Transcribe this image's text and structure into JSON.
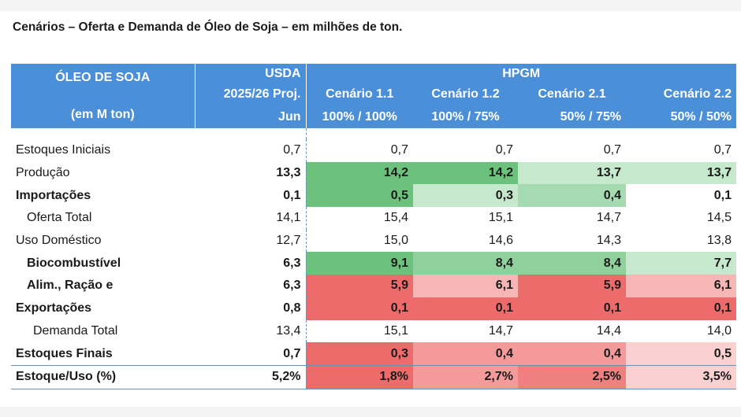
{
  "title": "Cenários – Oferta e Demanda de Óleo de Soja – em milhões de ton.",
  "header": {
    "label_line1": "ÓLEO DE SOJA",
    "label_line2": "(em M ton)",
    "usda_line1": "USDA",
    "usda_line2": "2025/26 Proj.",
    "usda_line3": "Jun",
    "hpgm": "HPGM",
    "scenarios": [
      {
        "name": "Cenário 1.1",
        "mix": "100% / 100%"
      },
      {
        "name": "Cenário 1.2",
        "mix": "100% / 75%"
      },
      {
        "name": "Cenário 2.1",
        "mix": "50% / 75%"
      },
      {
        "name": "Cenário 2.2",
        "mix": "50% / 50%"
      }
    ],
    "header_color": "#4a8fd8"
  },
  "rows": [
    {
      "label": "Estoques Iniciais",
      "style": "light",
      "indent": 0,
      "usda": "0,7",
      "values": [
        "0,7",
        "0,7",
        "0,7",
        "0,7"
      ],
      "fills": [
        "",
        "",
        "",
        ""
      ]
    },
    {
      "label": "Produção",
      "style": "light-bold",
      "indent": 0,
      "usda": "13,3",
      "values": [
        "14,2",
        "14,2",
        "13,7",
        "13,7"
      ],
      "fills": [
        "#6cc17d",
        "#6cc17d",
        "#c6e8cc",
        "#c6e8cc"
      ]
    },
    {
      "label": "Importações",
      "style": "bold",
      "indent": 0,
      "usda": "0,1",
      "values": [
        "0,5",
        "0,3",
        "0,4",
        "0,1"
      ],
      "fills": [
        "#6cc17d",
        "#c6e8cc",
        "#a6dab0",
        ""
      ]
    },
    {
      "label": "Oferta Total",
      "style": "light",
      "indent": 1,
      "usda": "14,1",
      "values": [
        "15,4",
        "15,1",
        "14,7",
        "14,5"
      ],
      "fills": [
        "",
        "",
        "",
        ""
      ]
    },
    {
      "label": "Uso Doméstico",
      "style": "light",
      "indent": 0,
      "usda": "12,7",
      "values": [
        "15,0",
        "14,6",
        "14,3",
        "13,8"
      ],
      "fills": [
        "",
        "",
        "",
        ""
      ]
    },
    {
      "label": "Biocombustível",
      "style": "bold",
      "indent": 1,
      "usda": "6,3",
      "values": [
        "9,1",
        "8,4",
        "8,4",
        "7,7"
      ],
      "fills": [
        "#6cc17d",
        "#8fd09c",
        "#8fd09c",
        "#c6e8cc"
      ]
    },
    {
      "label": "Alim., Ração e",
      "style": "bold",
      "indent": 1,
      "usda": "6,3",
      "values": [
        "5,9",
        "6,1",
        "5,9",
        "6,1"
      ],
      "fills": [
        "#ee6b6b",
        "#f7b6b6",
        "#ee6b6b",
        "#f7b6b6"
      ]
    },
    {
      "label": "Exportações",
      "style": "bold",
      "indent": 0,
      "usda": "0,8",
      "values": [
        "0,1",
        "0,1",
        "0,1",
        "0,1"
      ],
      "fills": [
        "#ee6b6b",
        "#ee6b6b",
        "#ee6b6b",
        "#ee6b6b"
      ]
    },
    {
      "label": "Demanda Total",
      "style": "light",
      "indent": 2,
      "usda": "13,4",
      "values": [
        "15,1",
        "14,7",
        "14,4",
        "14,0"
      ],
      "fills": [
        "",
        "",
        "",
        ""
      ]
    },
    {
      "label": "Estoques Finais",
      "style": "bold",
      "indent": 0,
      "usda": "0,7",
      "values": [
        "0,3",
        "0,4",
        "0,4",
        "0,5"
      ],
      "fills": [
        "#ee6b6b",
        "#f59a9a",
        "#f59a9a",
        "#fad0d0"
      ]
    },
    {
      "label": "Estoque/Uso (%)",
      "style": "bold",
      "indent": 0,
      "usda": "5,2%",
      "values": [
        "1,8%",
        "2,7%",
        "2,5%",
        "3,5%"
      ],
      "fills": [
        "#ee6b6b",
        "#f59a9a",
        "#f07f7f",
        "#fad0d0"
      ]
    }
  ]
}
